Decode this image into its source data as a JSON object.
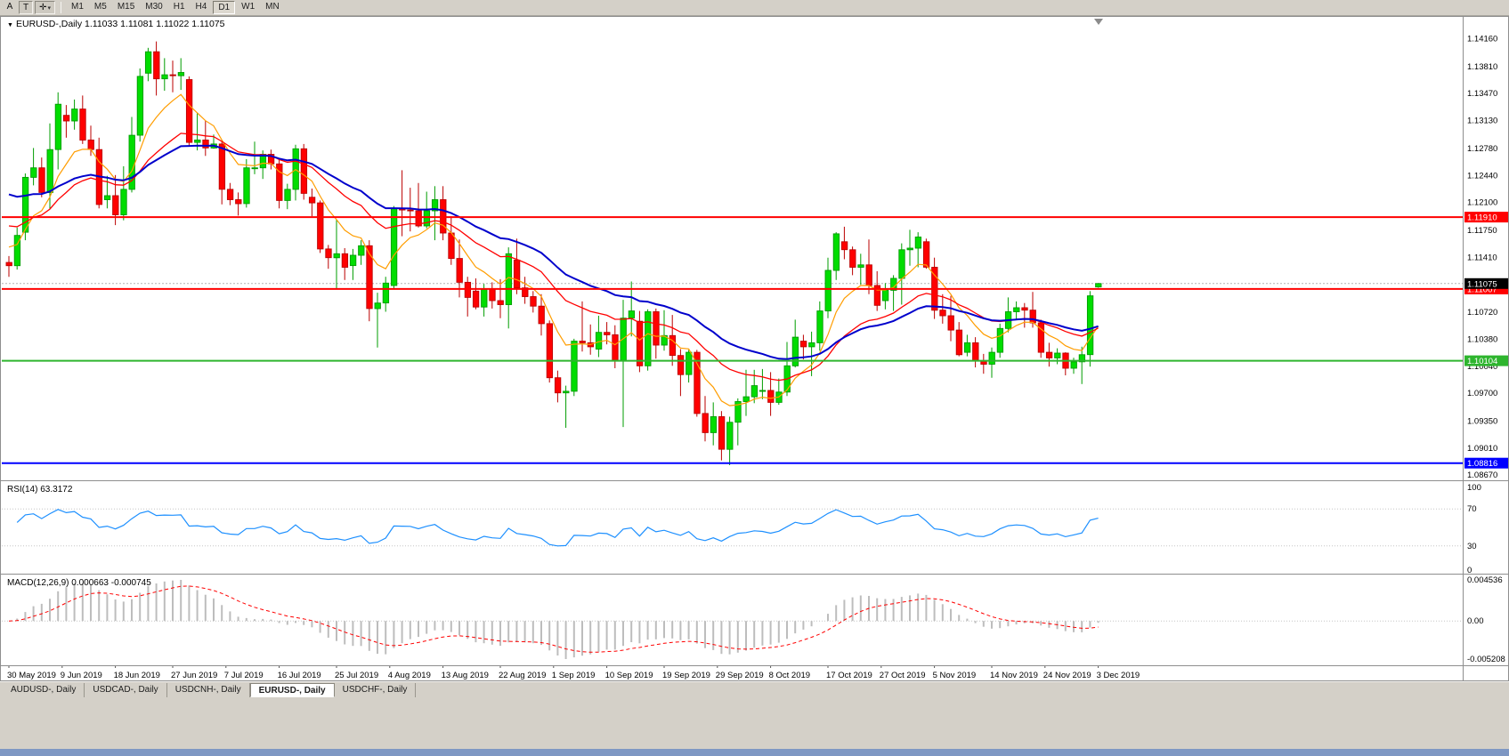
{
  "toolbar": {
    "tools": [
      {
        "label": "A"
      },
      {
        "label": "T"
      }
    ],
    "cursor_tool_glyph": "✛",
    "timeframes": [
      "M1",
      "M5",
      "M15",
      "M30",
      "H1",
      "H4",
      "D1",
      "W1",
      "MN"
    ],
    "active_timeframe": "D1"
  },
  "chart": {
    "title_line": "EURUSD-,Daily 1.11033 1.11081 1.11022 1.11075",
    "symbol": "EURUSD-",
    "period": "Daily",
    "ohlc": {
      "open": "1.11033",
      "high": "1.11081",
      "low": "1.11022",
      "close": "1.11075"
    }
  },
  "chart_data": {
    "type": "candlestick",
    "title": "EURUSD-,Daily",
    "timeframe": "D1",
    "y_axis": {
      "top": 1.1444,
      "bottom": 1.086,
      "ticks": [
        "1.14160",
        "1.13810",
        "1.13470",
        "1.13130",
        "1.12780",
        "1.12440",
        "1.12100",
        "1.11750",
        "1.11410",
        "1.11060",
        "1.10720",
        "1.10380",
        "1.10040",
        "1.09700",
        "1.09350",
        "1.09010",
        "1.08670"
      ]
    },
    "current_price": 1.11075,
    "current_price_label": "1.11075",
    "colors": {
      "up": "#00dd00",
      "down": "#ff0000",
      "up_stroke": "#009c00",
      "down_stroke": "#bb0000",
      "bg": "#ffffff"
    },
    "hlines": [
      {
        "price": 1.1191,
        "label": "1.11910",
        "color": "#ff0000",
        "width": 2
      },
      {
        "price": 1.11007,
        "label": "1.11007",
        "color": "#ff0000",
        "width": 2
      },
      {
        "price": 1.10104,
        "label": "1.10104",
        "color": "#2eb52e",
        "width": 2
      },
      {
        "price": 1.08816,
        "label": "1.08816",
        "color": "#0000ff",
        "width": 2
      }
    ],
    "moving_averages": [
      {
        "name": "ma-fast-orange",
        "period": 8,
        "seed": 1.116,
        "color": "#ff9d00",
        "width": 1.2
      },
      {
        "name": "ma-mid-red",
        "period": 21,
        "seed": 1.1185,
        "color": "#ff0000",
        "width": 1.3
      },
      {
        "name": "ma-slow-blue",
        "period": 34,
        "seed": 1.1225,
        "color": "#0000cc",
        "width": 2
      }
    ],
    "x_labels": [
      {
        "t": "30 May 2019",
        "i": 0
      },
      {
        "t": "9 Jun 2019",
        "i": 6.5
      },
      {
        "t": "18 Jun 2019",
        "i": 13
      },
      {
        "t": "27 Jun 2019",
        "i": 20
      },
      {
        "t": "7 Jul 2019",
        "i": 26.5
      },
      {
        "t": "16 Jul 2019",
        "i": 33
      },
      {
        "t": "25 Jul 2019",
        "i": 40
      },
      {
        "t": "4 Aug 2019",
        "i": 46.5
      },
      {
        "t": "13 Aug 2019",
        "i": 53
      },
      {
        "t": "22 Aug 2019",
        "i": 60
      },
      {
        "t": "1 Sep 2019",
        "i": 66.5
      },
      {
        "t": "10 Sep 2019",
        "i": 73
      },
      {
        "t": "19 Sep 2019",
        "i": 80
      },
      {
        "t": "29 Sep 2019",
        "i": 86.5
      },
      {
        "t": "8 Oct 2019",
        "i": 93
      },
      {
        "t": "17 Oct 2019",
        "i": 100
      },
      {
        "t": "27 Oct 2019",
        "i": 106.5
      },
      {
        "t": "5 Nov 2019",
        "i": 113
      },
      {
        "t": "14 Nov 2019",
        "i": 120
      },
      {
        "t": "24 Nov 2019",
        "i": 126.5
      },
      {
        "t": "3 Dec 2019",
        "i": 133
      }
    ],
    "rsi": {
      "label": "RSI(14) 63.3172",
      "period": 14,
      "value": 63.3172,
      "color": "#1e90ff",
      "levels": [
        70,
        30
      ],
      "axis_labels": [
        "100",
        "70",
        "30",
        "0"
      ]
    },
    "macd": {
      "label": "MACD(12,26,9) 0.000663 -0.000745",
      "fast": 12,
      "slow": 26,
      "signal_period": 9,
      "value": 0.000663,
      "signal_value": -0.000745,
      "hist_color": "#bdbdbd",
      "signal_color": "#ff0000",
      "axis_labels": [
        "0.004536",
        "0.00",
        "-0.005208"
      ]
    },
    "candles": [
      [
        "30 May",
        1.1134,
        1.1142,
        1.1116,
        1.113
      ],
      [
        "31 May",
        1.113,
        1.1178,
        1.1125,
        1.1168
      ],
      [
        "3 Jun",
        1.1172,
        1.1246,
        1.1162,
        1.1241
      ],
      [
        "4 Jun",
        1.1241,
        1.1278,
        1.1231,
        1.1253
      ],
      [
        "5 Jun",
        1.1253,
        1.1266,
        1.1216,
        1.1222
      ],
      [
        "6 Jun",
        1.1222,
        1.1309,
        1.1201,
        1.1276
      ],
      [
        "7 Jun",
        1.1276,
        1.1348,
        1.1251,
        1.1333
      ],
      [
        "10 Jun",
        1.1319,
        1.1332,
        1.1291,
        1.1312
      ],
      [
        "11 Jun",
        1.1312,
        1.1339,
        1.1301,
        1.1327
      ],
      [
        "12 Jun",
        1.1327,
        1.1344,
        1.1283,
        1.1288
      ],
      [
        "13 Jun",
        1.1288,
        1.1306,
        1.1268,
        1.1276
      ],
      [
        "14 Jun",
        1.1276,
        1.1291,
        1.1202,
        1.1207
      ],
      [
        "17 Jun",
        1.1213,
        1.1243,
        1.1202,
        1.1218
      ],
      [
        "18 Jun",
        1.1218,
        1.1244,
        1.1181,
        1.1194
      ],
      [
        "19 Jun",
        1.1194,
        1.1255,
        1.1187,
        1.1226
      ],
      [
        "20 Jun",
        1.1226,
        1.1317,
        1.1222,
        1.1294
      ],
      [
        "21 Jun",
        1.1294,
        1.1378,
        1.1286,
        1.1368
      ],
      [
        "24 Jun",
        1.1372,
        1.1404,
        1.1362,
        1.1399
      ],
      [
        "25 Jun",
        1.1399,
        1.1412,
        1.1344,
        1.1365
      ],
      [
        "26 Jun",
        1.1365,
        1.1391,
        1.135,
        1.137
      ],
      [
        "27 Jun",
        1.137,
        1.1388,
        1.1348,
        1.1369
      ],
      [
        "28 Jun",
        1.1369,
        1.1391,
        1.1351,
        1.1373
      ],
      [
        "1 Jul",
        1.1364,
        1.1368,
        1.1281,
        1.1285
      ],
      [
        "2 Jul",
        1.1285,
        1.1322,
        1.1275,
        1.1288
      ],
      [
        "3 Jul",
        1.1288,
        1.1312,
        1.1268,
        1.1278
      ],
      [
        "4 Jul",
        1.1278,
        1.1295,
        1.1277,
        1.1283
      ],
      [
        "5 Jul",
        1.1283,
        1.1287,
        1.1207,
        1.1226
      ],
      [
        "8 Jul",
        1.1226,
        1.1234,
        1.1206,
        1.1213
      ],
      [
        "9 Jul",
        1.1213,
        1.1222,
        1.1193,
        1.1208
      ],
      [
        "10 Jul",
        1.1208,
        1.1264,
        1.1203,
        1.1253
      ],
      [
        "11 Jul",
        1.1253,
        1.1286,
        1.1245,
        1.1253
      ],
      [
        "12 Jul",
        1.1253,
        1.1275,
        1.1239,
        1.127
      ],
      [
        "15 Jul",
        1.127,
        1.1276,
        1.1251,
        1.1258
      ],
      [
        "16 Jul",
        1.1258,
        1.1263,
        1.1202,
        1.1212
      ],
      [
        "17 Jul",
        1.1212,
        1.1233,
        1.1201,
        1.1226
      ],
      [
        "18 Jul",
        1.1226,
        1.1282,
        1.1212,
        1.1277
      ],
      [
        "19 Jul",
        1.1277,
        1.1283,
        1.1213,
        1.1221
      ],
      [
        "22 Jul",
        1.1216,
        1.1227,
        1.1192,
        1.1209
      ],
      [
        "23 Jul",
        1.1209,
        1.1212,
        1.1146,
        1.1151
      ],
      [
        "24 Jul",
        1.1151,
        1.1156,
        1.1126,
        1.114
      ],
      [
        "25 Jul",
        1.114,
        1.1188,
        1.1101,
        1.1145
      ],
      [
        "26 Jul",
        1.1145,
        1.1152,
        1.1112,
        1.1128
      ],
      [
        "29 Jul",
        1.113,
        1.1151,
        1.1112,
        1.1143
      ],
      [
        "30 Jul",
        1.1143,
        1.1162,
        1.1131,
        1.1155
      ],
      [
        "31 Jul",
        1.1155,
        1.1162,
        1.106,
        1.1076
      ],
      [
        "1 Aug",
        1.1076,
        1.1096,
        1.1027,
        1.1083
      ],
      [
        "2 Aug",
        1.1083,
        1.1116,
        1.1072,
        1.1108
      ],
      [
        "5 Aug",
        1.1105,
        1.1205,
        1.1101,
        1.1202
      ],
      [
        "6 Aug",
        1.1202,
        1.125,
        1.1167,
        1.12
      ],
      [
        "7 Aug",
        1.12,
        1.1228,
        1.1173,
        1.1199
      ],
      [
        "8 Aug",
        1.1199,
        1.1234,
        1.1178,
        1.118
      ],
      [
        "9 Aug",
        1.118,
        1.1223,
        1.1177,
        1.1199
      ],
      [
        "12 Aug",
        1.1199,
        1.123,
        1.1162,
        1.1213
      ],
      [
        "13 Aug",
        1.1213,
        1.123,
        1.1162,
        1.1171
      ],
      [
        "14 Aug",
        1.1171,
        1.1192,
        1.1131,
        1.1139
      ],
      [
        "15 Aug",
        1.1139,
        1.1163,
        1.109,
        1.1109
      ],
      [
        "16 Aug",
        1.1109,
        1.1116,
        1.1066,
        1.109
      ],
      [
        "19 Aug",
        1.1098,
        1.1114,
        1.1075,
        1.1078
      ],
      [
        "20 Aug",
        1.1078,
        1.1107,
        1.1066,
        1.11
      ],
      [
        "21 Aug",
        1.11,
        1.1109,
        1.1076,
        1.1086
      ],
      [
        "22 Aug",
        1.1086,
        1.1113,
        1.1064,
        1.1081
      ],
      [
        "23 Aug",
        1.1081,
        1.1153,
        1.1051,
        1.1145
      ],
      [
        "26 Aug",
        1.1137,
        1.1164,
        1.1094,
        1.1102
      ],
      [
        "27 Aug",
        1.1102,
        1.1116,
        1.1082,
        1.1091
      ],
      [
        "28 Aug",
        1.1091,
        1.1098,
        1.1071,
        1.1079
      ],
      [
        "29 Aug",
        1.1079,
        1.1094,
        1.1042,
        1.1057
      ],
      [
        "30 Aug",
        1.1057,
        1.1061,
        1.0983,
        1.0989
      ],
      [
        "2 Sep",
        1.0989,
        1.0998,
        1.0958,
        1.097
      ],
      [
        "3 Sep",
        1.097,
        1.0979,
        1.0926,
        1.0972
      ],
      [
        "4 Sep",
        1.0972,
        1.1038,
        1.0966,
        1.1035
      ],
      [
        "5 Sep",
        1.1035,
        1.1085,
        1.1022,
        1.1033
      ],
      [
        "6 Sep",
        1.1033,
        1.1056,
        1.1018,
        1.1028
      ],
      [
        "9 Sep",
        1.1025,
        1.1067,
        1.1015,
        1.1046
      ],
      [
        "10 Sep",
        1.1046,
        1.1059,
        1.1031,
        1.1043
      ],
      [
        "11 Sep",
        1.1043,
        1.1055,
        1.1001,
        1.1011
      ],
      [
        "12 Sep",
        1.1011,
        1.1087,
        1.0927,
        1.1064
      ],
      [
        "13 Sep",
        1.1064,
        1.111,
        1.1041,
        1.1073
      ],
      [
        "16 Sep",
        1.106,
        1.1073,
        1.0996,
        1.1004
      ],
      [
        "17 Sep",
        1.1004,
        1.1075,
        1.0998,
        1.1072
      ],
      [
        "18 Sep",
        1.1072,
        1.1076,
        1.1013,
        1.103
      ],
      [
        "19 Sep",
        1.103,
        1.1074,
        1.1023,
        1.1042
      ],
      [
        "20 Sep",
        1.1042,
        1.1068,
        1.1004,
        1.1017
      ],
      [
        "23 Sep",
        1.1017,
        1.1025,
        1.0966,
        1.0993
      ],
      [
        "24 Sep",
        1.0993,
        1.1024,
        1.0983,
        1.1021
      ],
      [
        "25 Sep",
        1.1021,
        1.1024,
        1.094,
        1.0944
      ],
      [
        "26 Sep",
        1.0944,
        1.0966,
        1.0909,
        1.092
      ],
      [
        "27 Sep",
        1.092,
        1.0958,
        1.0904,
        1.094
      ],
      [
        "30 Sep",
        1.094,
        1.0947,
        1.0885,
        1.0899
      ],
      [
        "1 Oct",
        1.0899,
        1.094,
        1.0879,
        1.0933
      ],
      [
        "2 Oct",
        1.0933,
        1.0963,
        1.0904,
        1.0959
      ],
      [
        "3 Oct",
        1.0959,
        1.0999,
        1.0941,
        1.0965
      ],
      [
        "4 Oct",
        1.0965,
        1.0999,
        1.0957,
        1.0979
      ],
      [
        "7 Oct",
        1.0972,
        1.1,
        1.0962,
        1.0973
      ],
      [
        "8 Oct",
        1.0973,
        1.0996,
        1.0941,
        1.0958
      ],
      [
        "9 Oct",
        1.0958,
        1.0988,
        1.0955,
        1.0971
      ],
      [
        "10 Oct",
        1.0971,
        1.1034,
        1.0966,
        1.1004
      ],
      [
        "11 Oct",
        1.1004,
        1.1062,
        1.1002,
        1.104
      ],
      [
        "14 Oct",
        1.1035,
        1.1043,
        1.1012,
        1.1028
      ],
      [
        "15 Oct",
        1.1028,
        1.1047,
        1.0991,
        1.1033
      ],
      [
        "16 Oct",
        1.1033,
        1.1085,
        1.1023,
        1.1073
      ],
      [
        "17 Oct",
        1.1073,
        1.114,
        1.1064,
        1.1124
      ],
      [
        "18 Oct",
        1.1124,
        1.1172,
        1.1112,
        1.117
      ],
      [
        "21 Oct",
        1.116,
        1.1179,
        1.1138,
        1.115
      ],
      [
        "22 Oct",
        1.115,
        1.1154,
        1.1118,
        1.1128
      ],
      [
        "23 Oct",
        1.1128,
        1.1145,
        1.1106,
        1.1131
      ],
      [
        "24 Oct",
        1.1131,
        1.1163,
        1.1094,
        1.1105
      ],
      [
        "25 Oct",
        1.1105,
        1.1123,
        1.1073,
        1.108
      ],
      [
        "28 Oct",
        1.1086,
        1.1108,
        1.1075,
        1.1099
      ],
      [
        "29 Oct",
        1.1099,
        1.1118,
        1.1073,
        1.1114
      ],
      [
        "30 Oct",
        1.1114,
        1.1158,
        1.1081,
        1.115
      ],
      [
        "31 Oct",
        1.115,
        1.1175,
        1.113,
        1.1152
      ],
      [
        "1 Nov",
        1.1152,
        1.1172,
        1.1128,
        1.1166
      ],
      [
        "4 Nov",
        1.116,
        1.1164,
        1.1126,
        1.1128
      ],
      [
        "5 Nov",
        1.1128,
        1.114,
        1.1063,
        1.1074
      ],
      [
        "6 Nov",
        1.1074,
        1.1094,
        1.1057,
        1.1067
      ],
      [
        "7 Nov",
        1.1067,
        1.1092,
        1.1035,
        1.1049
      ],
      [
        "8 Nov",
        1.1049,
        1.1059,
        1.1016,
        1.1018
      ],
      [
        "11 Nov",
        1.1021,
        1.1043,
        1.1016,
        1.1033
      ],
      [
        "12 Nov",
        1.1033,
        1.104,
        1.1002,
        1.101
      ],
      [
        "13 Nov",
        1.101,
        1.1019,
        1.0994,
        1.1006
      ],
      [
        "14 Nov",
        1.1006,
        1.1027,
        1.0989,
        1.1021
      ],
      [
        "15 Nov",
        1.1021,
        1.1057,
        1.1014,
        1.1051
      ],
      [
        "18 Nov",
        1.1051,
        1.109,
        1.1046,
        1.1072
      ],
      [
        "19 Nov",
        1.1072,
        1.1085,
        1.1063,
        1.1077
      ],
      [
        "20 Nov",
        1.1077,
        1.1083,
        1.1052,
        1.1074
      ],
      [
        "21 Nov",
        1.1074,
        1.1097,
        1.1052,
        1.1058
      ],
      [
        "22 Nov",
        1.1058,
        1.1062,
        1.1014,
        1.1021
      ],
      [
        "25 Nov",
        1.1021,
        1.1033,
        1.1003,
        1.1014
      ],
      [
        "26 Nov",
        1.1014,
        1.1026,
        1.1006,
        1.102
      ],
      [
        "27 Nov",
        1.102,
        1.1021,
        1.0992,
        1.1001
      ],
      [
        "28 Nov",
        1.1001,
        1.1014,
        1.0994,
        1.1009
      ],
      [
        "29 Nov",
        1.1009,
        1.1028,
        1.0981,
        1.1018
      ],
      [
        "2 Dec",
        1.1018,
        1.1098,
        1.1003,
        1.1092
      ],
      [
        "3 Dec",
        1.11033,
        1.11081,
        1.11022,
        1.11075
      ]
    ]
  },
  "tabs": {
    "items": [
      {
        "label": "AUDUSD-, Daily"
      },
      {
        "label": "USDCAD-, Daily"
      },
      {
        "label": "USDCNH-, Daily"
      },
      {
        "label": "EURUSD-, Daily"
      },
      {
        "label": "USDCHF-, Daily"
      }
    ],
    "active_index": 3
  }
}
